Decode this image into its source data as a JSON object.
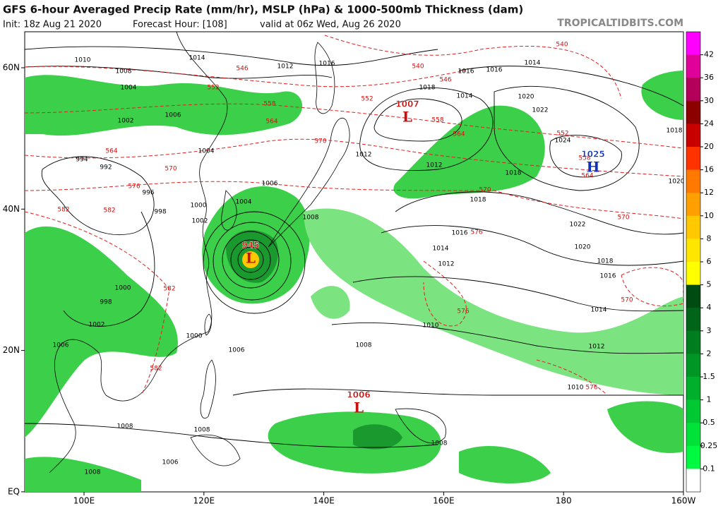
{
  "header": {
    "title": "GFS 6-hour Averaged Precip Rate (mm/hr), MSLP (hPa) & 1000-500mb Thickness (dam)",
    "init": "Init: 18z Aug 21 2020",
    "forecast_hour": "Forecast Hour: [108]",
    "valid": "valid at 06z Wed, Aug 26 2020",
    "credit": "TROPICALTIDBITS.COM"
  },
  "map": {
    "lat_labels": [
      "60N",
      "40N",
      "20N",
      "EQ"
    ],
    "lon_labels": [
      "100E",
      "120E",
      "140E",
      "160E",
      "180",
      "160W"
    ],
    "pressure_centers": [
      {
        "value": "1007",
        "letter": "L"
      },
      {
        "value": "1025",
        "letter": "H"
      },
      {
        "value": "945",
        "letter": "L"
      },
      {
        "value": "1006",
        "letter": "L"
      }
    ],
    "isobar_labels": [
      "1010",
      "1014",
      "1012",
      "1016",
      "1016",
      "1016",
      "1014",
      "1018",
      "1014",
      "1020",
      "1022",
      "1024",
      "1018",
      "1020",
      "1008",
      "1004",
      "1006",
      "1002",
      "1004",
      "994",
      "992",
      "996",
      "998",
      "1000",
      "1002",
      "1006",
      "1004",
      "1008",
      "1012",
      "1012",
      "1018",
      "1018",
      "1016",
      "1014",
      "1012",
      "1022",
      "1020",
      "1018",
      "1016",
      "1014",
      "1012",
      "1010",
      "1008",
      "1010",
      "1000",
      "998",
      "1002",
      "1006",
      "1000",
      "1006",
      "1008",
      "1008",
      "1008",
      "1006",
      "1008"
    ],
    "thickness_labels": [
      "546",
      "552",
      "558",
      "564",
      "570",
      "576",
      "570",
      "582",
      "582",
      "540",
      "540",
      "546",
      "552",
      "558",
      "564",
      "570",
      "576",
      "570",
      "564",
      "558",
      "552",
      "576",
      "576",
      "570",
      "582",
      "582",
      "564"
    ]
  },
  "colorbar": {
    "labels": [
      42,
      36,
      30,
      24,
      20,
      16,
      12,
      10,
      8,
      6,
      5,
      4,
      3,
      2,
      1.5,
      1,
      0.5,
      0.25,
      0.1
    ],
    "colors": [
      "#ff00ff",
      "#e0009a",
      "#b4005a",
      "#8c0000",
      "#c80000",
      "#ff3200",
      "#ff7800",
      "#ffa000",
      "#ffc800",
      "#ffe600",
      "#ffff00",
      "#004b12",
      "#006419",
      "#007d1f",
      "#009626",
      "#00af2c",
      "#00c833",
      "#00e13a",
      "#00fa41",
      "#ffffff"
    ]
  }
}
